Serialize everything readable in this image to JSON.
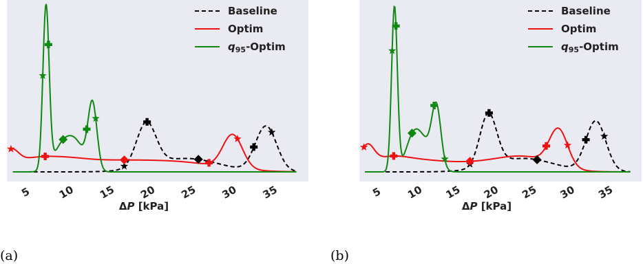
{
  "colors": {
    "baseline": "#000000",
    "optim": "#ee1111",
    "q95": "#118811",
    "panel_bg": "#eaeaf2"
  },
  "chart_data": [
    {
      "type": "line",
      "caption": "(a)",
      "xlabel_prefix": "Δ",
      "xlabel_var": "P",
      "xlabel_unit": " [kPa]",
      "xlim": [
        2.5,
        39.5
      ],
      "ylim": [
        0,
        1.0
      ],
      "grid": false,
      "legend_position": "top-right",
      "x_ticks": [
        5,
        10,
        15,
        20,
        25,
        30,
        35
      ],
      "x_tick_labels": [
        "5",
        "10",
        "15",
        "20",
        "25",
        "30",
        "35"
      ],
      "series": [
        {
          "name": "Baseline",
          "key": "baseline",
          "style": "dashed",
          "peaks": [
            [
              19.6,
              0.26,
              1.2
            ],
            [
              24.5,
              0.08,
              4.0
            ],
            [
              34.3,
              0.27,
              1.3
            ]
          ],
          "markers": [
            {
              "x": 16.9,
              "shape": "star"
            },
            {
              "x": 19.7,
              "shape": "plus"
            },
            {
              "x": 26.0,
              "shape": "diamond"
            },
            {
              "x": 32.8,
              "shape": "plus"
            },
            {
              "x": 35.0,
              "shape": "star"
            }
          ]
        },
        {
          "name": "Optim",
          "key": "optim",
          "style": "solid",
          "peaks": [
            [
              3.0,
              0.09,
              0.9
            ],
            [
              5.0,
              0.05,
              2.5
            ],
            [
              9.0,
              0.05,
              3.0
            ],
            [
              15.0,
              0.055,
              5.0
            ],
            [
              24.0,
              0.05,
              5.0
            ],
            [
              30.2,
              0.2,
              1.2
            ]
          ],
          "markers": [
            {
              "x": 3.0,
              "shape": "star"
            },
            {
              "x": 7.2,
              "shape": "plus"
            },
            {
              "x": 16.9,
              "shape": "diamond"
            },
            {
              "x": 27.3,
              "shape": "plus"
            },
            {
              "x": 30.8,
              "shape": "star"
            }
          ]
        },
        {
          "name": "q95-Optim",
          "key": "q95",
          "style": "solid",
          "peaks": [
            [
              7.3,
              0.97,
              0.38
            ],
            [
              9.5,
              0.17,
              1.2
            ],
            [
              11.2,
              0.12,
              1.0
            ],
            [
              13.0,
              0.4,
              0.55
            ]
          ],
          "markers": [
            {
              "x": 6.9,
              "shape": "star"
            },
            {
              "x": 7.6,
              "shape": "plus"
            },
            {
              "x": 9.4,
              "shape": "diamond"
            },
            {
              "x": 12.3,
              "shape": "plus"
            },
            {
              "x": 13.4,
              "shape": "star"
            }
          ]
        }
      ]
    },
    {
      "type": "line",
      "caption": "(b)",
      "xlabel_prefix": "Δ",
      "xlabel_var": "P",
      "xlabel_unit": " [kPa]",
      "xlim": [
        2.5,
        39.5
      ],
      "ylim": [
        0,
        1.0
      ],
      "grid": false,
      "legend_position": "top-right",
      "x_ticks": [
        5,
        10,
        15,
        20,
        25,
        30,
        35
      ],
      "x_tick_labels": [
        "5",
        "10",
        "15",
        "20",
        "25",
        "30",
        "35"
      ],
      "series": [
        {
          "name": "Baseline",
          "key": "baseline",
          "style": "dashed",
          "peaks": [
            [
              19.4,
              0.31,
              1.1
            ],
            [
              24.0,
              0.08,
              4.0
            ],
            [
              33.5,
              0.3,
              1.3
            ]
          ],
          "markers": [
            {
              "x": 17.0,
              "shape": "star"
            },
            {
              "x": 19.5,
              "shape": "plus"
            },
            {
              "x": 25.8,
              "shape": "diamond"
            },
            {
              "x": 32.2,
              "shape": "plus"
            },
            {
              "x": 34.6,
              "shape": "star"
            }
          ]
        },
        {
          "name": "Optim",
          "key": "optim",
          "style": "solid",
          "peaks": [
            [
              3.5,
              0.12,
              0.9
            ],
            [
              6.0,
              0.06,
              2.5
            ],
            [
              10.0,
              0.05,
              3.5
            ],
            [
              18.0,
              0.05,
              5.0
            ],
            [
              24.5,
              0.07,
              3.5
            ],
            [
              28.6,
              0.22,
              1.2
            ]
          ],
          "markers": [
            {
              "x": 3.1,
              "shape": "star"
            },
            {
              "x": 7.0,
              "shape": "plus"
            },
            {
              "x": 17.0,
              "shape": "diamond"
            },
            {
              "x": 27.0,
              "shape": "plus"
            },
            {
              "x": 29.8,
              "shape": "star"
            }
          ]
        },
        {
          "name": "q95-Optim",
          "key": "q95",
          "style": "solid",
          "peaks": [
            [
              7.1,
              0.98,
              0.38
            ],
            [
              9.5,
              0.17,
              1.0
            ],
            [
              11.0,
              0.15,
              1.2
            ],
            [
              12.6,
              0.35,
              0.6
            ]
          ],
          "markers": [
            {
              "x": 6.8,
              "shape": "star"
            },
            {
              "x": 7.3,
              "shape": "plus"
            },
            {
              "x": 9.4,
              "shape": "diamond"
            },
            {
              "x": 12.3,
              "shape": "plus"
            },
            {
              "x": 13.7,
              "shape": "star"
            }
          ]
        }
      ]
    }
  ]
}
